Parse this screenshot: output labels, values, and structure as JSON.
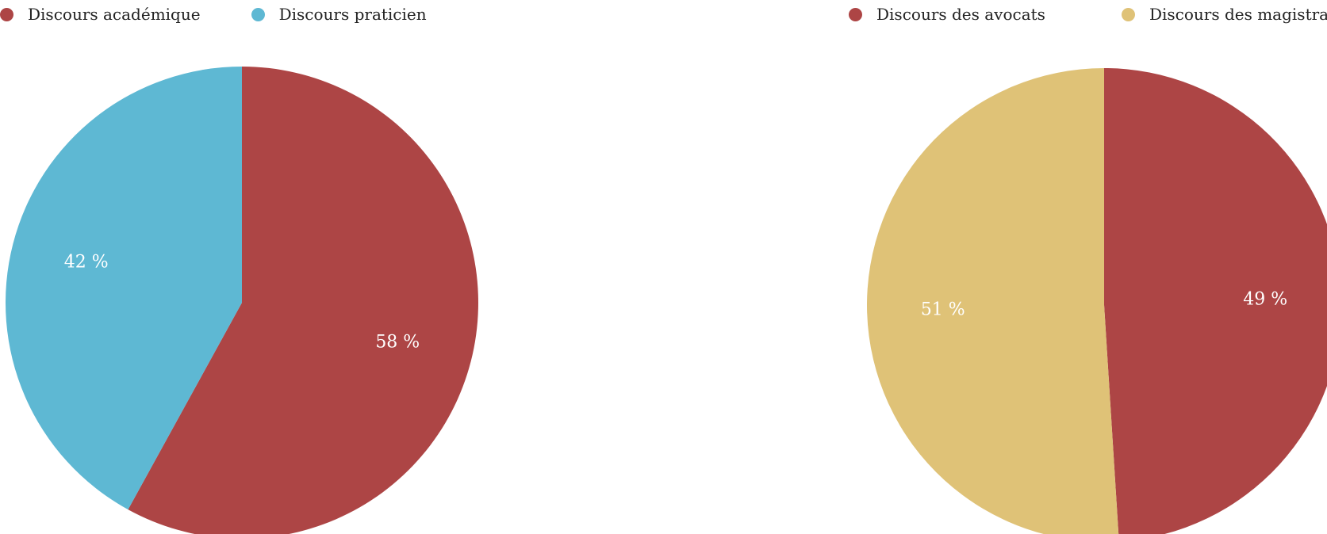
{
  "chart_data": [
    {
      "type": "pie",
      "title": "",
      "legend_position": "top-left",
      "series": [
        {
          "name": "Discours académique",
          "value": 58,
          "label": "58 %",
          "color": "#ad4545"
        },
        {
          "name": "Discours praticien",
          "value": 42,
          "label": "42 %",
          "color": "#5eb8d3"
        }
      ]
    },
    {
      "type": "pie",
      "title": "",
      "legend_position": "top-left",
      "series": [
        {
          "name": "Discours des avocats",
          "value": 49,
          "label": "49 %",
          "color": "#ad4545"
        },
        {
          "name": "Discours des magistrats",
          "value": 51,
          "label": "51 %",
          "color": "#dfc277"
        }
      ]
    }
  ]
}
